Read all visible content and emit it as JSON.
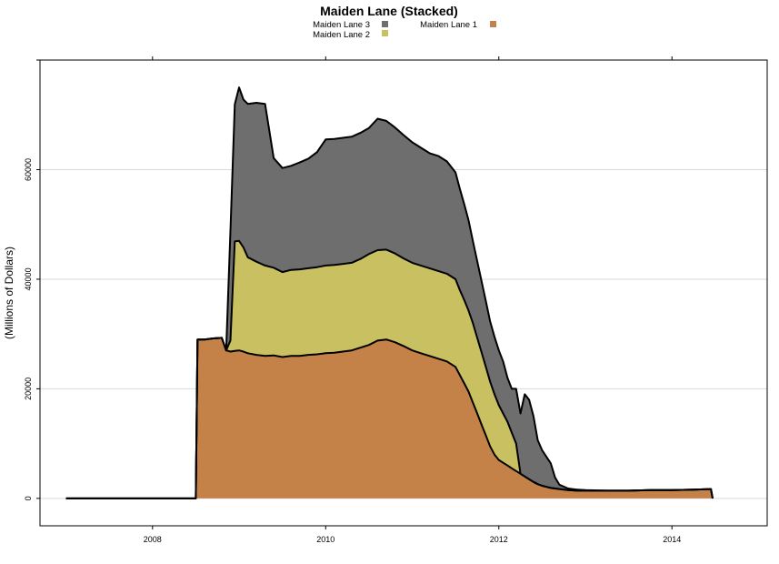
{
  "chart_data": {
    "type": "area",
    "stacked": true,
    "title": "Maiden Lane (Stacked)",
    "xlabel": "",
    "ylabel": "(Millions of Dollars)",
    "xlim": [
      2006.7,
      2015.1
    ],
    "ylim": [
      -5000,
      80000
    ],
    "x_ticks": [
      2008,
      2010,
      2012,
      2014
    ],
    "y_ticks": [
      0,
      20000,
      40000,
      60000
    ],
    "grid": "horizontal",
    "legend_placement": "top",
    "x": [
      2007.0,
      2008.5,
      2008.52,
      2008.6,
      2008.7,
      2008.8,
      2008.85,
      2008.9,
      2008.95,
      2009.0,
      2009.05,
      2009.1,
      2009.2,
      2009.3,
      2009.4,
      2009.5,
      2009.6,
      2009.7,
      2009.8,
      2009.9,
      2010.0,
      2010.1,
      2010.2,
      2010.3,
      2010.4,
      2010.5,
      2010.6,
      2010.7,
      2010.8,
      2010.9,
      2011.0,
      2011.1,
      2011.2,
      2011.3,
      2011.4,
      2011.5,
      2011.55,
      2011.6,
      2011.65,
      2011.7,
      2011.75,
      2011.8,
      2011.85,
      2011.9,
      2011.95,
      2012.0,
      2012.05,
      2012.1,
      2012.15,
      2012.2,
      2012.25,
      2012.3,
      2012.35,
      2012.4,
      2012.45,
      2012.5,
      2012.55,
      2012.6,
      2012.65,
      2012.7,
      2012.8,
      2012.9,
      2013.0,
      2013.25,
      2013.5,
      2013.75,
      2014.0,
      2014.25,
      2014.45,
      2014.47
    ],
    "series": [
      {
        "name": "Maiden Lane 1",
        "color": "#c58248",
        "values": [
          0,
          0,
          29000,
          29000,
          29200,
          29300,
          27000,
          26800,
          26900,
          27000,
          26800,
          26500,
          26200,
          26000,
          26100,
          25800,
          26000,
          26000,
          26200,
          26300,
          26500,
          26600,
          26800,
          27000,
          27500,
          28000,
          28800,
          29000,
          28500,
          27800,
          27000,
          26500,
          26000,
          25500,
          25000,
          24000,
          22500,
          21000,
          19500,
          17500,
          15500,
          13500,
          11500,
          9500,
          8000,
          7000,
          6500,
          6000,
          5500,
          5000,
          4500,
          4000,
          3500,
          3000,
          2600,
          2300,
          2100,
          1900,
          1800,
          1700,
          1500,
          1400,
          1400,
          1400,
          1400,
          1500,
          1500,
          1600,
          1700,
          0
        ]
      },
      {
        "name": "Maiden Lane 2",
        "color": "#c9c062",
        "values": [
          0,
          0,
          0,
          0,
          0,
          0,
          0,
          2000,
          20000,
          20000,
          19000,
          17500,
          17000,
          16500,
          16000,
          15500,
          15700,
          15800,
          15800,
          15900,
          16000,
          16000,
          16000,
          16000,
          16200,
          16600,
          16500,
          16400,
          16200,
          16000,
          16000,
          16000,
          16000,
          16000,
          16000,
          16000,
          15500,
          15200,
          14800,
          14500,
          13800,
          13200,
          12500,
          11800,
          11000,
          10000,
          9000,
          8000,
          6500,
          5000,
          0,
          0,
          0,
          0,
          0,
          0,
          0,
          0,
          0,
          0,
          0,
          0,
          0,
          0,
          0,
          0,
          0,
          0,
          0,
          0
        ]
      },
      {
        "name": "Maiden Lane 3",
        "color": "#6e6e6e",
        "values": [
          0,
          0,
          0,
          0,
          0,
          0,
          0,
          20000,
          25000,
          28000,
          27000,
          28000,
          29000,
          29500,
          20000,
          19000,
          19000,
          19500,
          20000,
          21000,
          23000,
          23000,
          23000,
          23000,
          23000,
          23000,
          24000,
          23500,
          23000,
          22500,
          22000,
          21500,
          21000,
          21000,
          20500,
          19500,
          18500,
          17500,
          16500,
          15000,
          14000,
          13000,
          12000,
          11000,
          10500,
          10000,
          9500,
          8000,
          8000,
          10000,
          11000,
          15000,
          14500,
          12000,
          8000,
          6500,
          5500,
          4500,
          2000,
          800,
          300,
          200,
          100,
          0,
          0,
          0,
          0,
          0,
          0,
          0
        ]
      }
    ],
    "legend_order": [
      "Maiden Lane 3",
      "Maiden Lane 2",
      "Maiden Lane 1"
    ]
  }
}
